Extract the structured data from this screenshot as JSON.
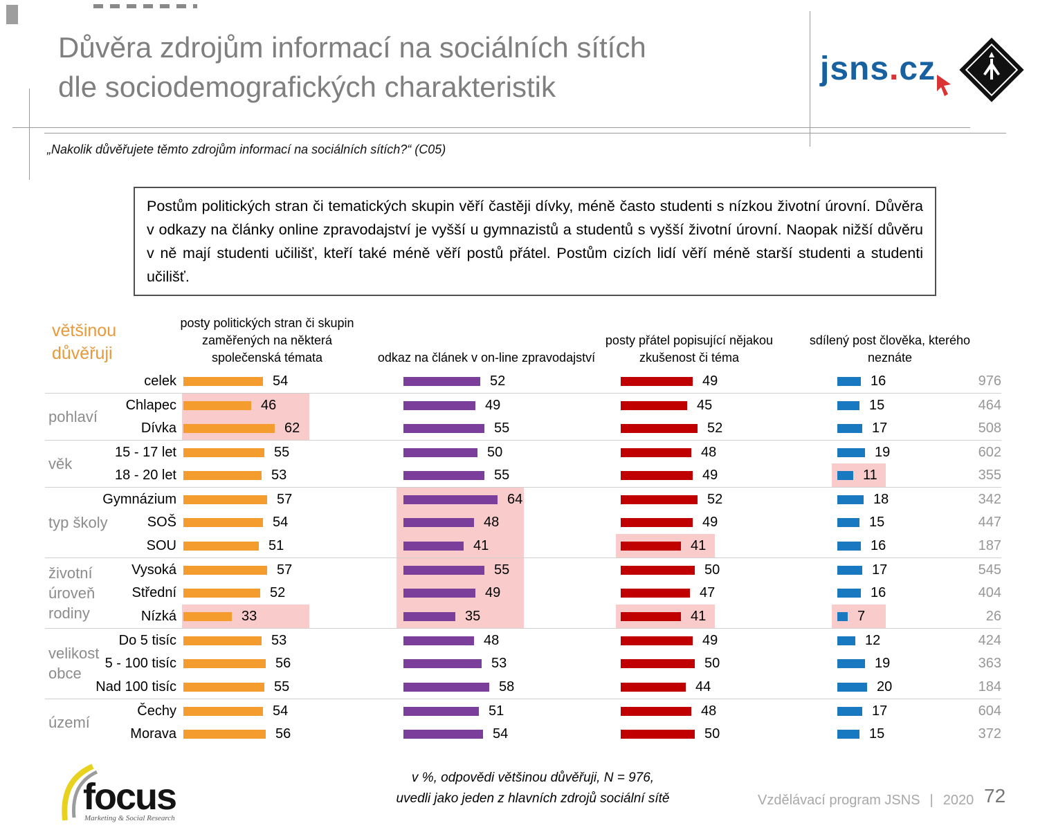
{
  "slide": {
    "title_line1": "Důvěra zdrojům informací na sociálních sítích",
    "title_line2": "dle sociodemografických charakteristik",
    "question": "„Nakolik důvěřujete těmto zdrojům informací na sociálních sítích?“ (C05)",
    "summary_box": "Postům politických stran či tematických skupin věří častěji dívky, méně často studenti s nízkou životní úrovní. Důvěra v odkazy na články online zpravodajství je vyšší u gymnazistů a studentů s vyšší životní úrovní. Naopak nižší důvěru v ně mají studenti učilišť, kteří také méně věří postů přátel. Postům cizích lidí věří méně starší studenti a studenti učilišť.",
    "legend_label": "většinou důvěřuji",
    "footer_note_line1": "v %, odpovědi většinou důvěřuji, N = 976,",
    "footer_note_line2": "uvedli jako jeden z hlavních zdrojů sociální sítě",
    "footer_right": "Vzdělávací program JSNS",
    "footer_sep": "|",
    "footer_year": "2020",
    "page_number": "72",
    "logo_jsns_text": "jsns",
    "logo_jsns_dot": ".",
    "logo_jsns_tld": "cz",
    "logo_pit_ring_text": "ČLOVĚK V TÍSNI ČESKÁ REPUBLIKA",
    "logo_focus": "focus",
    "logo_focus_sub": "Marketing & Social Research"
  },
  "colors": {
    "orange": "#f59c2e",
    "purple": "#7b3f9b",
    "dark_red": "#c00000",
    "blue": "#1878c0",
    "highlight_pink": "#f9cbcb",
    "accent_orange_text": "#e8993b",
    "title_gray": "#7f7f7f",
    "n_gray": "#979797"
  },
  "chart_data": {
    "type": "bar",
    "orientation": "horizontal",
    "unit": "%",
    "n_total": 976,
    "xlim": [
      0,
      100
    ],
    "note": "v %, odpovědi většinou důvěřuji, N = 976, uvedli jako jeden z hlavních zdrojů sociální sítě",
    "categories": [
      "celek",
      "Chlapec",
      "Dívka",
      "15 - 17 let",
      "18 - 20 let",
      "Gymnázium",
      "SOŠ",
      "SOU",
      "Vysoká",
      "Střední",
      "Nízká",
      "Do 5 tisíc",
      "5 - 100 tisíc",
      "Nad 100 tisíc",
      "Čechy",
      "Morava"
    ],
    "row_groups": [
      {
        "label": "",
        "count": 1
      },
      {
        "label": "pohlaví",
        "count": 2
      },
      {
        "label": "věk",
        "count": 2
      },
      {
        "label": "typ školy",
        "count": 3
      },
      {
        "label": "životní úroveň rodiny",
        "count": 3
      },
      {
        "label": "velikost obce",
        "count": 3
      },
      {
        "label": "území",
        "count": 2
      }
    ],
    "series": [
      {
        "name": "posty politických stran či skupin zaměřených na některá společenská témata",
        "color": "#f59c2e",
        "values": [
          54,
          46,
          62,
          55,
          53,
          57,
          54,
          51,
          57,
          52,
          33,
          53,
          56,
          55,
          54,
          56
        ],
        "highlighted": [
          false,
          true,
          true,
          false,
          false,
          false,
          false,
          false,
          false,
          false,
          true,
          false,
          false,
          false,
          false,
          false
        ]
      },
      {
        "name": "odkaz na článek v on-line zpravodajství",
        "color": "#7b3f9b",
        "values": [
          52,
          49,
          55,
          50,
          55,
          64,
          48,
          41,
          55,
          49,
          35,
          48,
          53,
          58,
          51,
          54
        ],
        "highlighted": [
          false,
          false,
          false,
          false,
          false,
          true,
          true,
          true,
          true,
          true,
          true,
          false,
          false,
          false,
          false,
          false
        ]
      },
      {
        "name": "posty přátel popisující nějakou zkušenost či téma",
        "color": "#c00000",
        "values": [
          49,
          45,
          52,
          48,
          49,
          52,
          49,
          41,
          50,
          47,
          41,
          49,
          50,
          44,
          48,
          50
        ],
        "highlighted": [
          false,
          false,
          false,
          false,
          false,
          false,
          false,
          true,
          false,
          false,
          true,
          false,
          false,
          false,
          false,
          false
        ]
      },
      {
        "name": "sdílený post člověka, kterého neznáte",
        "color": "#1878c0",
        "values": [
          16,
          15,
          17,
          19,
          11,
          18,
          15,
          16,
          17,
          16,
          7,
          12,
          19,
          20,
          17,
          15
        ],
        "highlighted": [
          false,
          false,
          false,
          false,
          true,
          false,
          false,
          false,
          false,
          false,
          true,
          false,
          false,
          false,
          false,
          false
        ]
      }
    ],
    "n_values": [
      976,
      464,
      508,
      602,
      355,
      342,
      447,
      187,
      545,
      404,
      26,
      424,
      363,
      184,
      604,
      372
    ]
  }
}
